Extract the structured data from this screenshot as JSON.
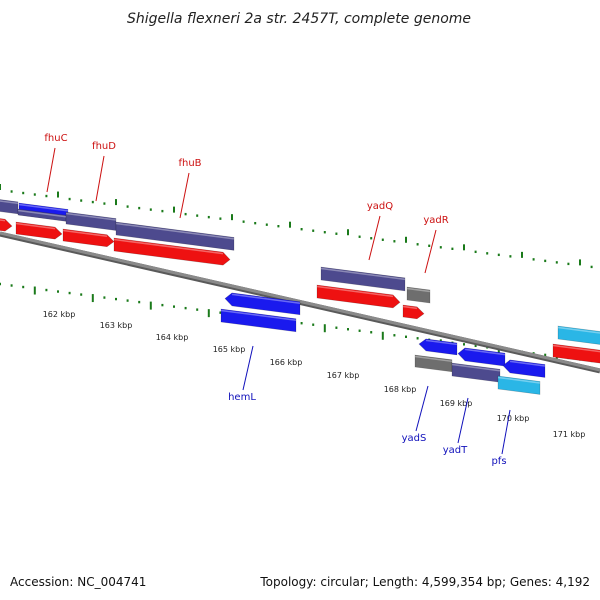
{
  "title": "Shigella flexneri 2a str. 2457T, complete genome",
  "footer": {
    "accession": "Accession: NC_004741",
    "topology": "Topology: circular; Length: 4,599,354 bp; Genes: 4,192"
  },
  "colors": {
    "backbone": "#8a8a8a",
    "tick": "#1a7a1a",
    "label_forward": "#cc1111",
    "label_reverse": "#1111bb",
    "blue": "#1a1aee",
    "red": "#ee1111",
    "purple": "#4d4a8e",
    "gray": "#6e6e6e",
    "cyan": "#2ab6e6"
  },
  "kbp_labels": [
    "162 kbp",
    "163 kbp",
    "164 kbp",
    "165 kbp",
    "166 kbp",
    "167 kbp",
    "168 kbp",
    "169 kbp",
    "170 kbp",
    "171 kbp"
  ],
  "gene_labels": [
    {
      "text": "fhuC",
      "color": "label_forward"
    },
    {
      "text": "fhuD",
      "color": "label_forward"
    },
    {
      "text": "fhuB",
      "color": "label_forward"
    },
    {
      "text": "yadQ",
      "color": "label_forward"
    },
    {
      "text": "yadR",
      "color": "label_forward"
    },
    {
      "text": "hemL",
      "color": "label_reverse"
    },
    {
      "text": "yadS",
      "color": "label_reverse"
    },
    {
      "text": "yadT",
      "color": "label_reverse"
    },
    {
      "text": "pfs",
      "color": "label_reverse"
    }
  ]
}
